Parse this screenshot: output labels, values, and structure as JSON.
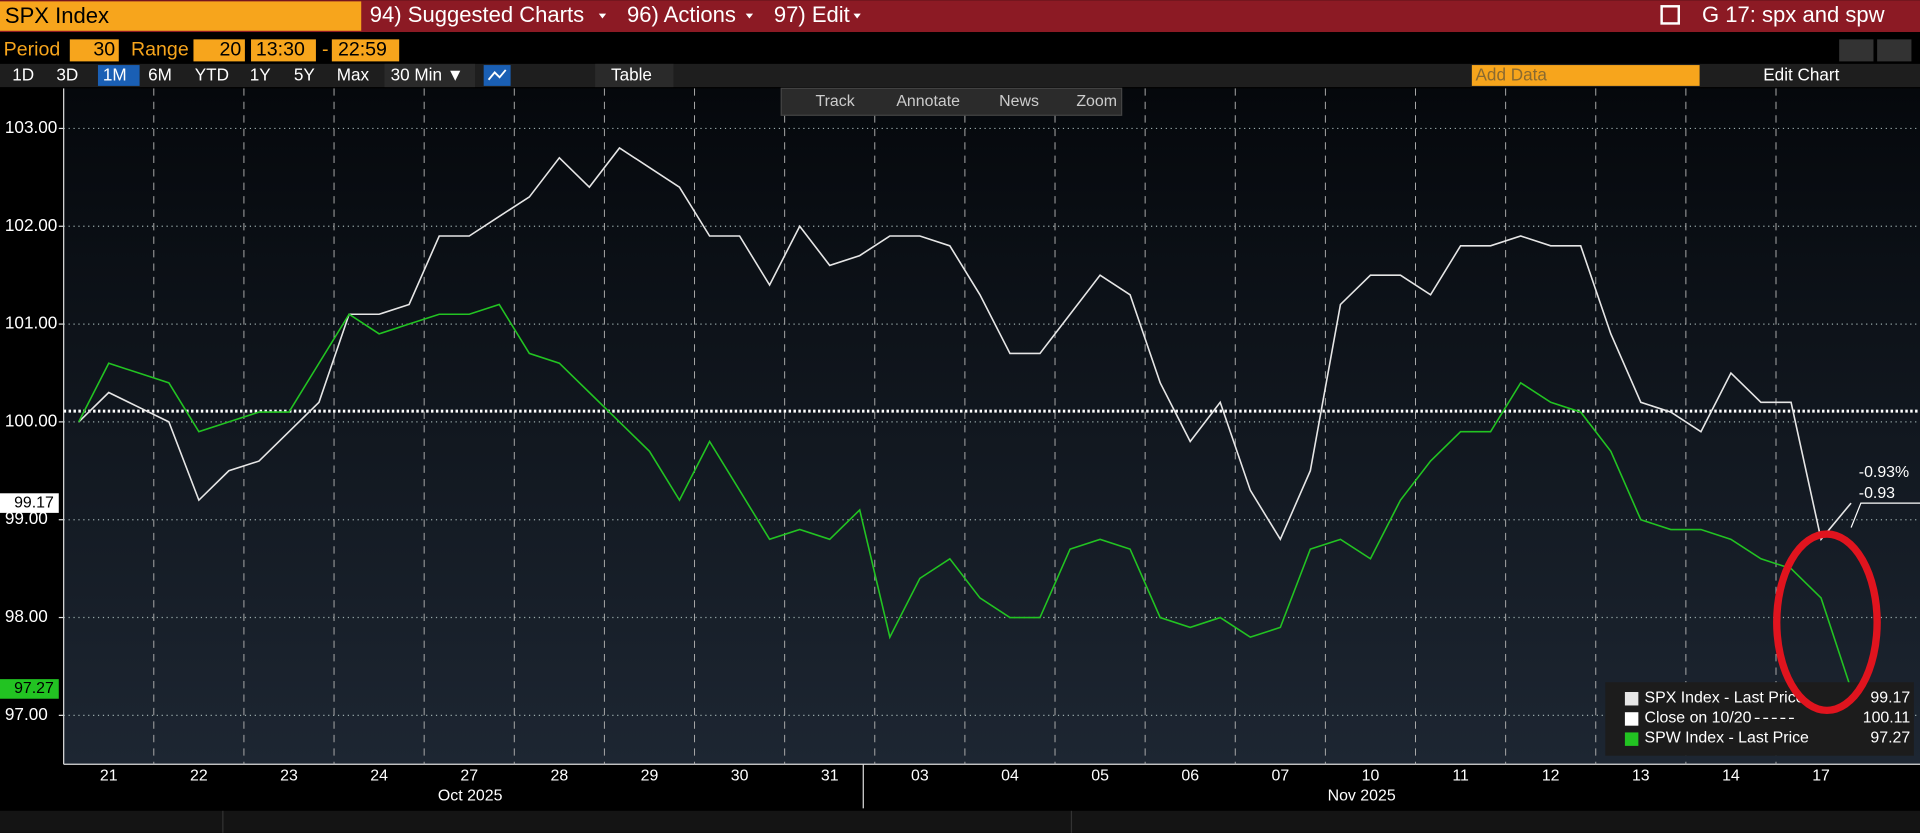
{
  "header": {
    "security": "SPX Index",
    "menus": [
      "94) Suggested Charts",
      "96) Actions",
      "97) Edit"
    ],
    "title": "G 17: spx and spw"
  },
  "settings": {
    "period_label": "Period",
    "period": 30,
    "range_label": "Range",
    "range": 20,
    "start": "13:30",
    "separator": "-",
    "end": "22:59"
  },
  "toolbar": {
    "ranges": [
      "1D",
      "3D",
      "1M",
      "6M",
      "YTD",
      "1Y",
      "5Y",
      "Max"
    ],
    "interval": "30 Min ▼",
    "table": "Table",
    "add_data": "Add Data",
    "edit_chart": "Edit Chart"
  },
  "chart_tools": [
    "Track",
    "Annotate",
    "News",
    "Zoom"
  ],
  "chart_data": {
    "type": "line",
    "categories": [
      null,
      "21",
      null,
      null,
      "22",
      null,
      null,
      "23",
      null,
      null,
      "24",
      null,
      null,
      "27",
      null,
      null,
      "28",
      null,
      null,
      "29",
      null,
      null,
      "30",
      null,
      null,
      "31",
      null,
      null,
      "03",
      null,
      null,
      "04",
      null,
      null,
      "05",
      null,
      null,
      "06",
      null,
      null,
      "07",
      null,
      null,
      "10",
      null,
      null,
      "11",
      null,
      null,
      "12",
      null,
      null,
      "13",
      null,
      null,
      "14",
      null,
      null,
      "17",
      null
    ],
    "month_labels": [
      "Oct 2025",
      "Nov 2025"
    ],
    "series": [
      {
        "name": "SPX Index - Last Price",
        "color": "#e6e6e6",
        "values": [
          100.0,
          100.3,
          100.15,
          100.0,
          99.2,
          99.5,
          99.6,
          99.9,
          100.2,
          101.1,
          101.1,
          101.2,
          101.9,
          101.9,
          102.1,
          102.3,
          102.7,
          102.4,
          102.8,
          102.6,
          102.4,
          101.9,
          101.9,
          101.4,
          102.0,
          101.6,
          101.7,
          101.9,
          101.9,
          101.8,
          101.3,
          100.7,
          100.7,
          101.1,
          101.5,
          101.3,
          100.4,
          99.8,
          100.2,
          99.3,
          98.8,
          99.5,
          101.2,
          101.5,
          101.5,
          101.3,
          101.8,
          101.8,
          101.9,
          101.8,
          101.8,
          100.9,
          100.2,
          100.1,
          99.9,
          100.5,
          100.2,
          100.2,
          98.8,
          99.17
        ]
      },
      {
        "name": "SPW Index - Last Price",
        "color": "#22c322",
        "values": [
          100.0,
          100.6,
          100.5,
          100.4,
          99.9,
          100.0,
          100.1,
          100.1,
          100.6,
          101.1,
          100.9,
          101.0,
          101.1,
          101.1,
          101.2,
          100.7,
          100.6,
          100.3,
          100.0,
          99.7,
          99.2,
          99.8,
          99.3,
          98.8,
          98.9,
          98.8,
          99.1,
          97.8,
          98.4,
          98.6,
          98.2,
          98.0,
          98.0,
          98.7,
          98.8,
          98.7,
          98.0,
          97.9,
          98.0,
          97.8,
          97.9,
          98.7,
          98.8,
          98.6,
          99.2,
          99.6,
          99.9,
          99.9,
          100.4,
          100.2,
          100.1,
          99.7,
          99.0,
          98.9,
          98.9,
          98.8,
          98.6,
          98.5,
          98.2,
          97.27
        ]
      }
    ],
    "reference": {
      "name": "Close on 10/20",
      "value": 100.11,
      "color": "#ffffff"
    },
    "annotations": [
      "-0.93%",
      "-0.93"
    ],
    "ylim": [
      96.5,
      103.41
    ],
    "yticks": [
      {
        "value": 97,
        "label": "97.00"
      },
      {
        "value": 98,
        "label": "98.00"
      },
      {
        "value": 99,
        "label": "99.00"
      },
      {
        "value": 100,
        "label": "100.00"
      },
      {
        "value": 101,
        "label": "101.00"
      },
      {
        "value": 102,
        "label": "102.00"
      },
      {
        "value": 103,
        "label": "103.00"
      }
    ],
    "grid": true
  }
}
